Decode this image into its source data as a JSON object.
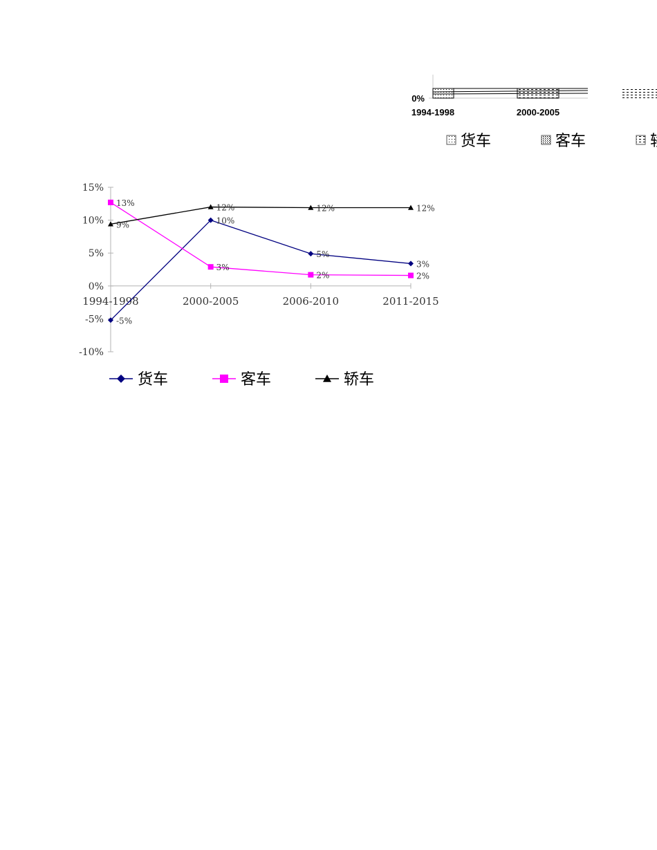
{
  "chart_data": [
    {
      "type": "bar",
      "note": "partially visible, cropped at the right edge",
      "categories": [
        "1994-1998",
        "2000-2005"
      ],
      "y_tick_labels": [
        "0%"
      ],
      "legend_position": "bottom",
      "series": [
        {
          "name": "货车"
        },
        {
          "name": "客车"
        },
        {
          "name": "轿车"
        }
      ]
    },
    {
      "type": "line",
      "categories": [
        "1994-1998",
        "2000-2005",
        "2006-2010",
        "2011-2015"
      ],
      "ylim": [
        -10,
        15
      ],
      "y_ticks": [
        15,
        10,
        5,
        0,
        -5,
        -10
      ],
      "y_tick_labels": [
        "15%",
        "10%",
        "5%",
        "0%",
        "-5%",
        "-10%"
      ],
      "grid": false,
      "legend_position": "bottom",
      "series": [
        {
          "name": "货车",
          "values": [
            -5.2,
            10.0,
            4.9,
            3.4
          ],
          "data_labels": [
            "-5%",
            "10%",
            "5%",
            "3%"
          ],
          "color": "#000080",
          "marker": "diamond"
        },
        {
          "name": "客车",
          "values": [
            12.7,
            2.9,
            1.7,
            1.6
          ],
          "data_labels": [
            "13%",
            "3%",
            "2%",
            "2%"
          ],
          "color": "#ff00ff",
          "marker": "square"
        },
        {
          "name": "轿车",
          "values": [
            9.4,
            12.0,
            11.9,
            11.9
          ],
          "data_labels": [
            "9%",
            "12%",
            "12%",
            "12%"
          ],
          "color": "#000000",
          "marker": "triangle"
        }
      ]
    }
  ]
}
